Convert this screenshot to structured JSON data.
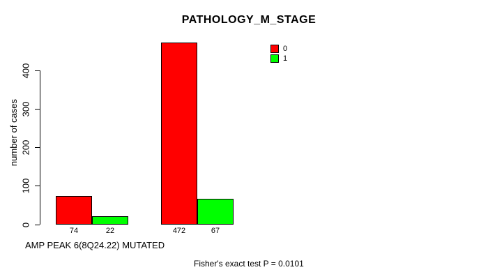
{
  "chart_data": {
    "type": "bar",
    "title": "PATHOLOGY_M_STAGE",
    "xlabel": "AMP PEAK 6(8Q24.22) MUTATED",
    "ylabel": "number of cases",
    "ylim": [
      0,
      400
    ],
    "yticks": [
      0,
      100,
      200,
      300,
      400
    ],
    "grid": false,
    "legend_position": "top-right",
    "bar_border_color": "#000000",
    "series": [
      {
        "name": "0",
        "color": "#ff0000"
      },
      {
        "name": "1",
        "color": "#00ff00"
      }
    ],
    "groups": [
      {
        "bars": [
          {
            "series": "0",
            "value": 74,
            "label": "74"
          },
          {
            "series": "1",
            "value": 22,
            "label": "22"
          }
        ]
      },
      {
        "bars": [
          {
            "series": "0",
            "value": 472,
            "label": "472"
          },
          {
            "series": "1",
            "value": 67,
            "label": "67"
          }
        ]
      }
    ],
    "annotation": "Fisher's exact test P = 0.0101"
  }
}
